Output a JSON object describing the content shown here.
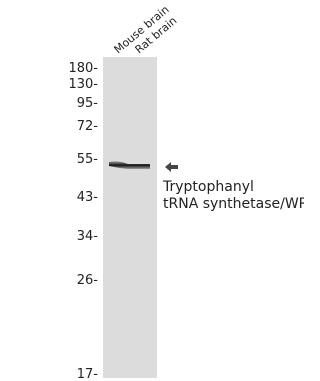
{
  "lanes": [
    "Mouse brain",
    "Rat brain"
  ],
  "markers": [
    "180-",
    "130-",
    "95-",
    "72-",
    "55-",
    "43-",
    "34-",
    "26-",
    "17-"
  ],
  "band_label": [
    "Tryptophanyl",
    "tRNA synthetase/WRS"
  ]
}
